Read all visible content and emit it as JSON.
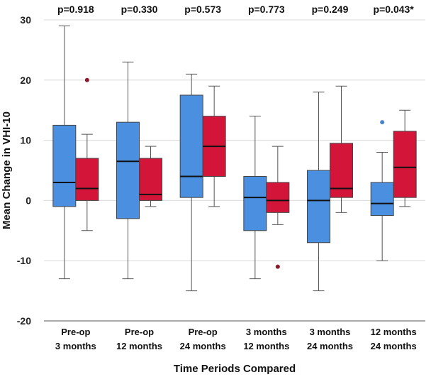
{
  "chart_data": {
    "type": "boxplot",
    "title": "",
    "xlabel": "Time Periods Compared",
    "ylabel": "Mean Change in VHI-10",
    "ylim": [
      -20,
      30
    ],
    "yticks": [
      -20,
      -10,
      0,
      10,
      20,
      30
    ],
    "ytick_labels": [
      "-20",
      "-10",
      "0",
      "10",
      "20",
      "30"
    ],
    "grid": true,
    "colors": {
      "first": "#4a8fe0",
      "second": "#d4153a",
      "outlier_first": "#4a86c8",
      "outlier_second": "#8b1a2a"
    },
    "groups": [
      {
        "label_line1": "Pre-op",
        "label_line2": "3 months",
        "p_value": "p=0.918",
        "boxes": [
          {
            "series": "first",
            "min": -13,
            "q1": -1,
            "median": 3,
            "q3": 12.5,
            "max": 29,
            "outliers": []
          },
          {
            "series": "second",
            "min": -5,
            "q1": 0,
            "median": 2,
            "q3": 7,
            "max": 11,
            "outliers": [
              20
            ]
          }
        ]
      },
      {
        "label_line1": "Pre-op",
        "label_line2": "12 months",
        "p_value": "p=0.330",
        "boxes": [
          {
            "series": "first",
            "min": -13,
            "q1": -3,
            "median": 6.5,
            "q3": 13,
            "max": 23,
            "outliers": []
          },
          {
            "series": "second",
            "min": -1,
            "q1": 0,
            "median": 1,
            "q3": 7,
            "max": 9,
            "outliers": []
          }
        ]
      },
      {
        "label_line1": "Pre-op",
        "label_line2": "24 months",
        "p_value": "p=0.573",
        "boxes": [
          {
            "series": "first",
            "min": -15,
            "q1": 0.5,
            "median": 4,
            "q3": 17.5,
            "max": 21,
            "outliers": []
          },
          {
            "series": "second",
            "min": -1,
            "q1": 4,
            "median": 9,
            "q3": 14,
            "max": 19,
            "outliers": []
          }
        ]
      },
      {
        "label_line1": "3 months",
        "label_line2": "12 months",
        "p_value": "p=0.773",
        "boxes": [
          {
            "series": "first",
            "min": -13,
            "q1": -5,
            "median": 0.5,
            "q3": 4,
            "max": 14,
            "outliers": []
          },
          {
            "series": "second",
            "min": -4,
            "q1": -2,
            "median": 0,
            "q3": 3,
            "max": 9,
            "outliers": [
              -11
            ]
          }
        ]
      },
      {
        "label_line1": "3 months",
        "label_line2": "24 months",
        "p_value": "p=0.249",
        "boxes": [
          {
            "series": "first",
            "min": -15,
            "q1": -7,
            "median": 0,
            "q3": 5,
            "max": 18,
            "outliers": []
          },
          {
            "series": "second",
            "min": -2,
            "q1": 0.5,
            "median": 2,
            "q3": 9.5,
            "max": 19,
            "outliers": []
          }
        ]
      },
      {
        "label_line1": "12 months",
        "label_line2": "24 months",
        "p_value": "p=0.043*",
        "boxes": [
          {
            "series": "first",
            "min": -10,
            "q1": -2.5,
            "median": -0.5,
            "q3": 3,
            "max": 8,
            "outliers": [
              13
            ]
          },
          {
            "series": "second",
            "min": -1,
            "q1": 0.5,
            "median": 5.5,
            "q3": 11.5,
            "max": 15,
            "outliers": []
          }
        ]
      }
    ]
  }
}
